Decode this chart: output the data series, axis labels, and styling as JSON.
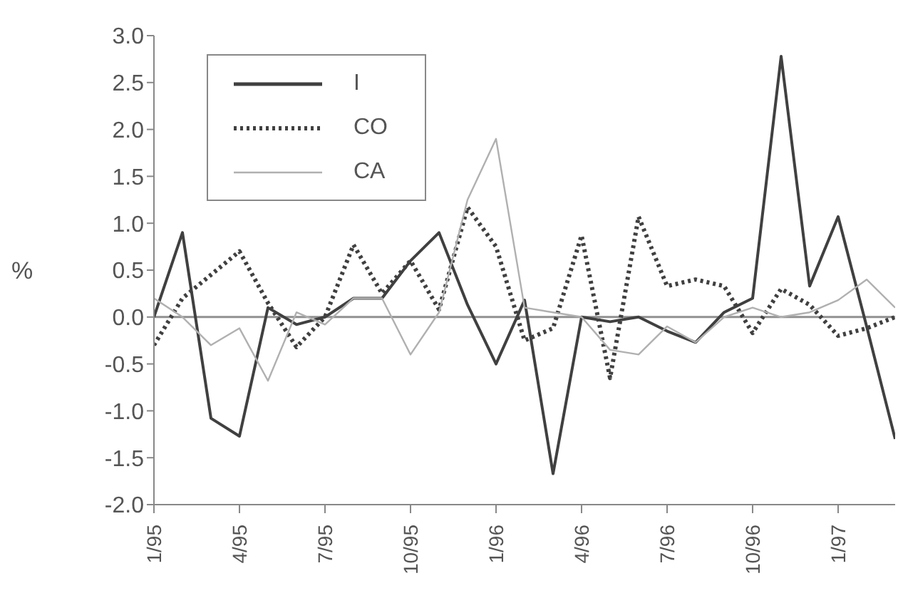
{
  "chart_data": {
    "type": "line",
    "ylabel": "%",
    "x": [
      "1995-01",
      "1995-02",
      "1995-03",
      "1995-04",
      "1995-05",
      "1995-06",
      "1995-07",
      "1995-08",
      "1995-09",
      "1995-10",
      "1995-11",
      "1995-12",
      "1996-01",
      "1996-02",
      "1996-03",
      "1996-04",
      "1996-05",
      "1996-06",
      "1996-07",
      "1996-08",
      "1996-09",
      "1996-10",
      "1996-11",
      "1996-12",
      "1997-01",
      "1997-02",
      "1997-03"
    ],
    "series": [
      {
        "name": "I",
        "color": "#404040",
        "line_style": "solid",
        "values": [
          0.0,
          0.9,
          -1.08,
          -1.27,
          0.1,
          -0.08,
          0.0,
          0.2,
          0.2,
          0.6,
          0.9,
          0.13,
          -0.5,
          0.18,
          -1.67,
          0.0,
          -0.05,
          0.0,
          -0.15,
          -0.27,
          0.05,
          0.2,
          2.78,
          0.33,
          1.07,
          -0.1,
          -1.3
        ]
      },
      {
        "name": "CO",
        "color": "#404040",
        "line_style": "dotted",
        "values": [
          -0.3,
          0.2,
          0.45,
          0.7,
          0.15,
          -0.32,
          0.0,
          0.77,
          0.25,
          0.6,
          0.08,
          1.17,
          0.75,
          -0.25,
          -0.12,
          0.87,
          -0.65,
          1.07,
          0.33,
          0.4,
          0.33,
          -0.17,
          0.3,
          0.13,
          -0.2,
          -0.12,
          0.0
        ]
      },
      {
        "name": "CA",
        "color": "#b0b0b0",
        "line_style": "solid",
        "values": [
          0.2,
          0.0,
          -0.3,
          -0.12,
          -0.68,
          0.05,
          -0.08,
          0.2,
          0.2,
          -0.4,
          0.05,
          1.25,
          1.9,
          0.1,
          0.05,
          0.0,
          -0.35,
          -0.4,
          -0.1,
          -0.27,
          0.0,
          0.1,
          0.0,
          0.05,
          0.18,
          0.4,
          0.1
        ]
      }
    ],
    "xlim": [
      "1995-01",
      "1997-03"
    ],
    "xticks": [
      {
        "value": "1995-01",
        "label": "1/95"
      },
      {
        "value": "1995-04",
        "label": "4/95"
      },
      {
        "value": "1995-07",
        "label": "7/95"
      },
      {
        "value": "1995-10",
        "label": "10/95"
      },
      {
        "value": "1996-01",
        "label": "1/96"
      },
      {
        "value": "1996-04",
        "label": "4/96"
      },
      {
        "value": "1996-07",
        "label": "7/96"
      },
      {
        "value": "1996-10",
        "label": "10/96"
      },
      {
        "value": "1997-01",
        "label": "1/97"
      }
    ],
    "ylim": [
      -2.0,
      3.0
    ],
    "yticks": [
      {
        "value": -2,
        "label": "-2.0"
      },
      {
        "value": -1.5,
        "label": "-1.5"
      },
      {
        "value": -1,
        "label": "-1.0"
      },
      {
        "value": -0.5,
        "label": "-0.5"
      },
      {
        "value": 0,
        "label": "0.0"
      },
      {
        "value": 0.5,
        "label": "0.5"
      },
      {
        "value": 1,
        "label": "1.0"
      },
      {
        "value": 1.5,
        "label": "1.5"
      },
      {
        "value": 2,
        "label": "2.0"
      },
      {
        "value": 2.5,
        "label": "2.5"
      },
      {
        "value": 3,
        "label": "3.0"
      }
    ],
    "ref_lines": [
      {
        "axis": "y",
        "value": 0,
        "color": "#909090"
      }
    ],
    "legend": "top left",
    "marker": "none",
    "grid": false
  }
}
